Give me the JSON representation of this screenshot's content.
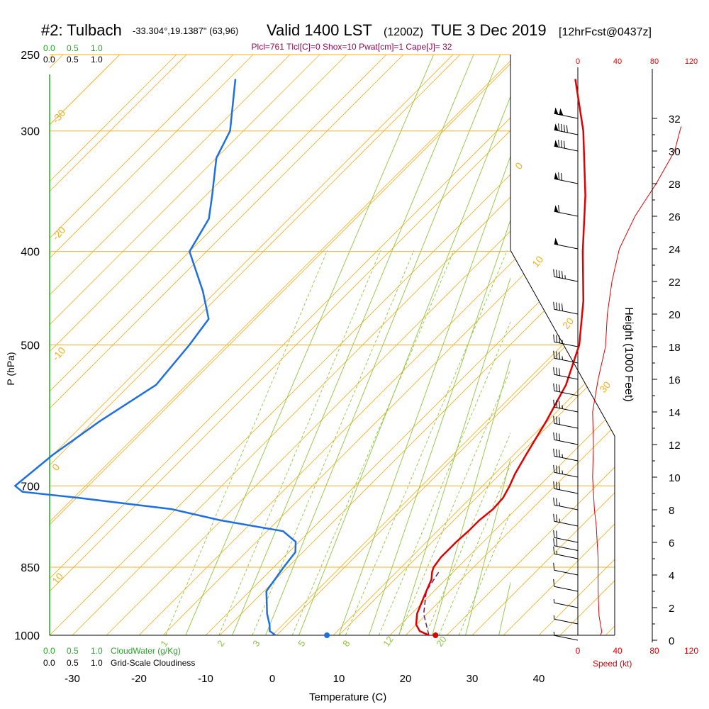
{
  "header": {
    "station": "#2: Tulbach",
    "coords": "-33.304°,19.1387\" (63,96)",
    "valid": "Valid 1400 LST",
    "utc": "(1200Z)",
    "date": "TUE 3 Dec 2019",
    "forecast": "[12hrFcst@0437z]"
  },
  "indices": "Plcl=761 Tlcl[C]=0 Shox=10 Pwat[cm]=1 Cape[J]= 32",
  "colors": {
    "isotherm": "#f0b020",
    "mixing_ratio": "#8cc63f",
    "temperature": "#e00000",
    "dewpoint": "#1e6fe0",
    "cloud_scale": "#22aa22",
    "speed": "#e00000",
    "parcel": "#6a1a60"
  },
  "chart_data": {
    "type": "line",
    "subtype": "skew-t log-p sounding",
    "xlabel": "Temperature (C)",
    "ylabel": "P (hPa)",
    "right_ylabel": "Height (1000 Feet)",
    "x_ticks": [
      -30,
      -20,
      -10,
      0,
      10,
      20,
      30,
      40
    ],
    "pressure_ticks": [
      1000,
      850,
      700,
      500,
      400,
      300,
      250
    ],
    "height_ticks": [
      0,
      2,
      4,
      6,
      8,
      10,
      12,
      14,
      16,
      18,
      20,
      22,
      24,
      26,
      28,
      30,
      32
    ],
    "isotherm_labels": [
      "-30",
      "-20",
      "-10",
      "0",
      "10",
      "0",
      "10",
      "20",
      "30"
    ],
    "mixing_ratio_labels": [
      "1",
      "2",
      "3",
      "5",
      "8",
      "12",
      "20"
    ],
    "series": [
      {
        "name": "temperature",
        "points": [
          [
            1000,
            23.5
          ],
          [
            990,
            21.5
          ],
          [
            975,
            20.0
          ],
          [
            950,
            18.5
          ],
          [
            925,
            17.5
          ],
          [
            900,
            16.5
          ],
          [
            875,
            15.5
          ],
          [
            860,
            14.5
          ],
          [
            850,
            14.0
          ],
          [
            830,
            13.6
          ],
          [
            800,
            13.6
          ],
          [
            780,
            13.8
          ],
          [
            760,
            13.8
          ],
          [
            740,
            14.2
          ],
          [
            720,
            14.0
          ],
          [
            700,
            13.2
          ],
          [
            680,
            12.2
          ],
          [
            650,
            11.0
          ],
          [
            600,
            9.0
          ],
          [
            550,
            6.5
          ],
          [
            500,
            2.5
          ],
          [
            450,
            -3.5
          ],
          [
            400,
            -11.0
          ],
          [
            350,
            -19.0
          ],
          [
            300,
            -29.0
          ],
          [
            265,
            -38.0
          ]
        ]
      },
      {
        "name": "dewpoint",
        "points": [
          [
            1000,
            0.5
          ],
          [
            990,
            -1.0
          ],
          [
            975,
            -2.0
          ],
          [
            950,
            -4.0
          ],
          [
            900,
            -7.5
          ],
          [
            850,
            -8.5
          ],
          [
            820,
            -9.0
          ],
          [
            800,
            -10.5
          ],
          [
            780,
            -14.0
          ],
          [
            760,
            -25.0
          ],
          [
            740,
            -34.0
          ],
          [
            720,
            -50.0
          ],
          [
            710,
            -59.0
          ],
          [
            700,
            -61.0
          ],
          [
            650,
            -60.0
          ],
          [
            600,
            -58.0
          ],
          [
            550,
            -55.0
          ],
          [
            500,
            -56.0
          ],
          [
            470,
            -57.0
          ],
          [
            440,
            -62.0
          ],
          [
            400,
            -70.0
          ],
          [
            370,
            -72.0
          ],
          [
            350,
            -75.0
          ],
          [
            320,
            -80.0
          ],
          [
            300,
            -82.0
          ],
          [
            265,
            -89.0
          ]
        ]
      },
      {
        "name": "parcel",
        "points": [
          [
            1000,
            23.5
          ],
          [
            950,
            19.5
          ],
          [
            900,
            16.5
          ],
          [
            860,
            15.5
          ]
        ]
      }
    ],
    "surface": {
      "temperature": 24.5,
      "dewpoint": 8.2
    },
    "wind_speed_ticks": [
      0,
      40,
      80,
      120
    ],
    "wind_speed_label": "Speed (kt)",
    "wind_speed_profile": [
      [
        0,
        22
      ],
      [
        0.5,
        26
      ],
      [
        1.5,
        23
      ],
      [
        3,
        22
      ],
      [
        5,
        22
      ],
      [
        6,
        21
      ],
      [
        7,
        20
      ],
      [
        8,
        18
      ],
      [
        10,
        16
      ],
      [
        12,
        17
      ],
      [
        14,
        16
      ],
      [
        16,
        22
      ],
      [
        18,
        30
      ],
      [
        20,
        32
      ],
      [
        22,
        37
      ],
      [
        24,
        45
      ],
      [
        26,
        62
      ],
      [
        28,
        85
      ],
      [
        30,
        105
      ],
      [
        31.5,
        112
      ]
    ],
    "wind_barbs": [
      [
        0,
        180,
        8
      ],
      [
        1,
        200,
        8
      ],
      [
        2,
        210,
        8
      ],
      [
        3,
        220,
        10
      ],
      [
        4,
        230,
        10
      ],
      [
        5,
        240,
        15
      ],
      [
        5.5,
        250,
        20
      ],
      [
        6,
        260,
        20
      ],
      [
        7,
        255,
        25
      ],
      [
        8,
        250,
        25
      ],
      [
        9,
        245,
        30
      ],
      [
        10,
        245,
        35
      ],
      [
        11,
        250,
        35
      ],
      [
        12,
        250,
        30
      ],
      [
        13,
        245,
        30
      ],
      [
        14,
        240,
        35
      ],
      [
        15,
        245,
        30
      ],
      [
        16,
        250,
        30
      ],
      [
        17,
        255,
        35
      ],
      [
        18,
        260,
        35
      ],
      [
        20,
        265,
        40
      ],
      [
        22,
        265,
        45
      ],
      [
        24,
        270,
        50
      ],
      [
        26,
        270,
        60
      ],
      [
        28,
        270,
        70
      ],
      [
        30,
        270,
        80
      ],
      [
        31,
        275,
        90
      ],
      [
        32,
        275,
        100
      ]
    ]
  },
  "cloud_scale": {
    "values": [
      "0.0",
      "0.5",
      "1.0"
    ],
    "cloudwater_label": "CloudWater (g/Kg)",
    "cloudiness_label": "Grid-Scale Cloudiness"
  }
}
